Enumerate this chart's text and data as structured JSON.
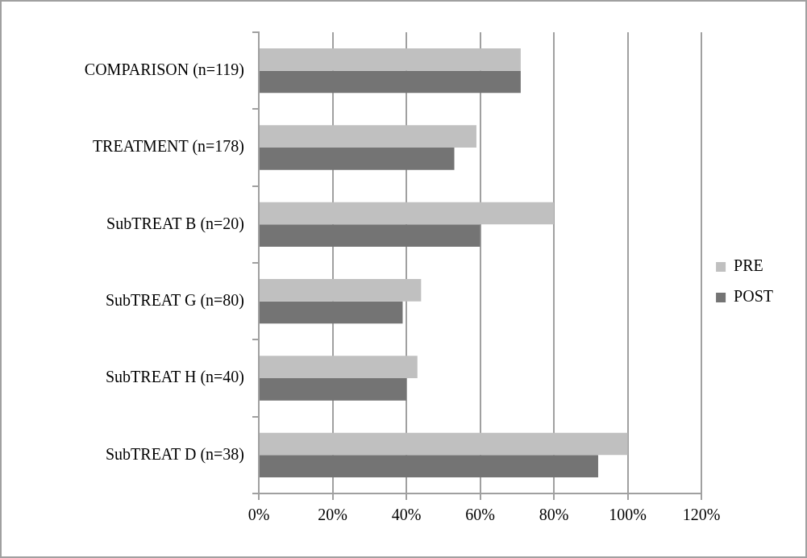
{
  "chart_data": {
    "type": "bar",
    "orientation": "horizontal",
    "categories": [
      "COMPARISON (n=119)",
      "TREATMENT (n=178)",
      "SubTREAT B (n=20)",
      "SubTREAT G (n=80)",
      "SubTREAT H (n=40)",
      "SubTREAT D (n=38)"
    ],
    "series": [
      {
        "name": "PRE",
        "color": "#c0c0c0",
        "values": [
          71,
          59,
          80,
          44,
          43,
          100
        ]
      },
      {
        "name": "POST",
        "color": "#747474",
        "values": [
          71,
          53,
          60,
          39,
          40,
          92
        ]
      }
    ],
    "xlim": [
      0,
      120
    ],
    "xticks": [
      {
        "value": 0,
        "label": "0%"
      },
      {
        "value": 20,
        "label": "20%"
      },
      {
        "value": 40,
        "label": "40%"
      },
      {
        "value": 60,
        "label": "60%"
      },
      {
        "value": 80,
        "label": "80%"
      },
      {
        "value": 100,
        "label": "100%"
      },
      {
        "value": 120,
        "label": "120%"
      }
    ],
    "grid": "x",
    "legend": "right"
  }
}
